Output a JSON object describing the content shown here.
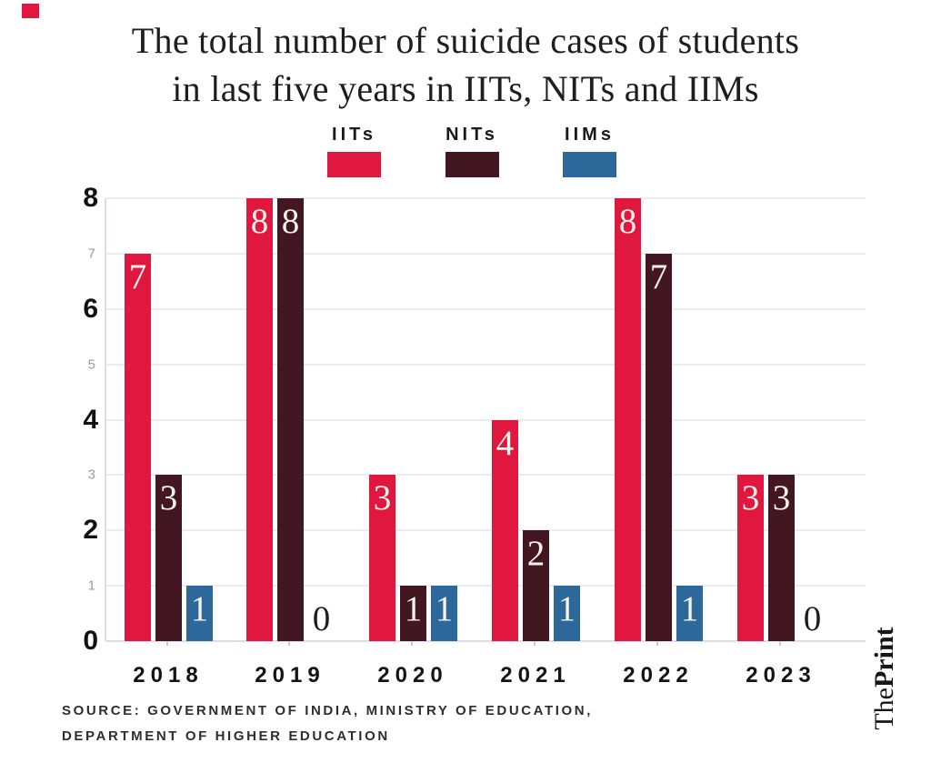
{
  "brand": {
    "square_color": "#E0173F",
    "logo_the": "The",
    "logo_print": "Print"
  },
  "title": {
    "line1": "The total number of suicide cases of students",
    "line2": "in last five years in IITs, NITs and IIMs"
  },
  "source": {
    "line1": "SOURCE: GOVERNMENT OF INDIA, MINISTRY OF EDUCATION,",
    "line2": "DEPARTMENT OF HIGHER EDUCATION"
  },
  "chart_data": {
    "type": "bar",
    "title": "The total number of suicide cases of students in last five years in IITs, NITs and IIMs",
    "categories": [
      "2018",
      "2019",
      "2020",
      "2021",
      "2022",
      "2023"
    ],
    "series": [
      {
        "name": "IITs",
        "color": "#E0173F",
        "values": [
          7,
          8,
          3,
          4,
          8,
          3
        ]
      },
      {
        "name": "NITs",
        "color": "#421722",
        "values": [
          3,
          8,
          1,
          2,
          7,
          3
        ]
      },
      {
        "name": "IIMs",
        "color": "#2D689A",
        "values": [
          1,
          0,
          1,
          1,
          1,
          0
        ]
      }
    ],
    "ylim": [
      0,
      8
    ],
    "yticks_major": [
      0,
      2,
      4,
      6,
      8
    ],
    "yticks_minor": [
      1,
      3,
      5,
      7
    ],
    "grid": true,
    "legend_position": "top-center",
    "value_labels": "inside-top, zero values shown as black 0 at baseline"
  }
}
